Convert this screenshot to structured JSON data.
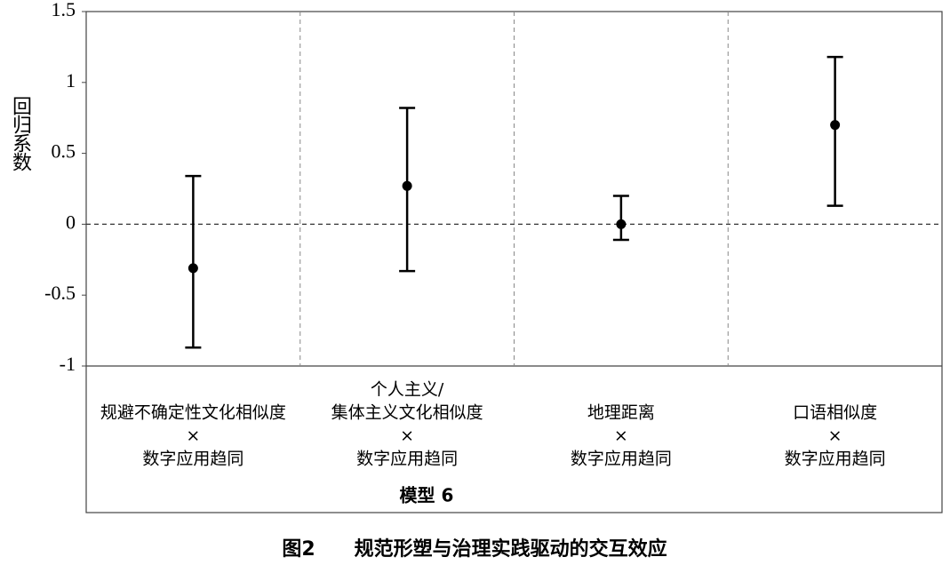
{
  "chart_data": {
    "type": "errorbar",
    "categories": [
      [
        "规避不确定性文化相似度",
        "×",
        "数字应用趋同"
      ],
      [
        "个人主义/",
        "集体主义文化相似度",
        "×",
        "数字应用趋同"
      ],
      [
        "地理距离",
        "×",
        "数字应用趋同"
      ],
      [
        "口语相似度",
        "×",
        "数字应用趋同"
      ]
    ],
    "values": [
      -0.31,
      0.27,
      0.0,
      0.7
    ],
    "ci_low": [
      -0.87,
      -0.33,
      -0.11,
      0.13
    ],
    "ci_high": [
      0.34,
      0.82,
      0.2,
      1.18
    ],
    "color": "#000000",
    "ylim": [
      -1,
      1.5
    ],
    "yticks": [
      -1,
      -0.5,
      0,
      0.5,
      1,
      1.5
    ],
    "ylabel": "回归系数",
    "xlabel": "模型 6",
    "caption": "图2　　规范形塑与治理实践驱动的交互效应"
  }
}
